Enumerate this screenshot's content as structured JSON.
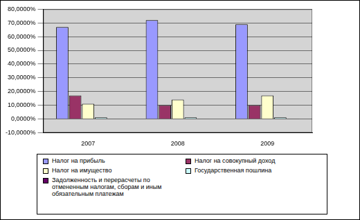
{
  "chart_data": {
    "type": "bar",
    "categories": [
      "2007",
      "2008",
      "2009"
    ],
    "series": [
      {
        "name": "Налог на прибыль",
        "color": "#9999ff",
        "values": [
          67,
          72,
          69
        ]
      },
      {
        "name": "Налог на совокупный доход",
        "color": "#993366",
        "values": [
          17,
          10,
          10
        ]
      },
      {
        "name": "Налог на имущество",
        "color": "#ffffcc",
        "values": [
          11,
          14,
          17
        ]
      },
      {
        "name": "Государственная пошлина",
        "color": "#ccffff",
        "values": [
          1,
          1,
          1
        ]
      },
      {
        "name": "Задолженность и перерасчеты по отмененным налогам, сборам и иным обязательным платежам",
        "color": "#660066",
        "values": [
          0.1,
          0.1,
          0.1
        ]
      }
    ],
    "ylim": [
      -10,
      80
    ],
    "yticks": [
      {
        "value": -10,
        "label": "-10,0000%"
      },
      {
        "value": 0,
        "label": "0,0000%"
      },
      {
        "value": 10,
        "label": "10,0000%"
      },
      {
        "value": 20,
        "label": "20,0000%"
      },
      {
        "value": 30,
        "label": "30,0000%"
      },
      {
        "value": 40,
        "label": "40,0000%"
      },
      {
        "value": 50,
        "label": "50,0000%"
      },
      {
        "value": 60,
        "label": "60,0000%"
      },
      {
        "value": 70,
        "label": "70,0000%"
      },
      {
        "value": 80,
        "label": "80,0000%"
      }
    ],
    "grid": true,
    "legend": "bottom"
  }
}
